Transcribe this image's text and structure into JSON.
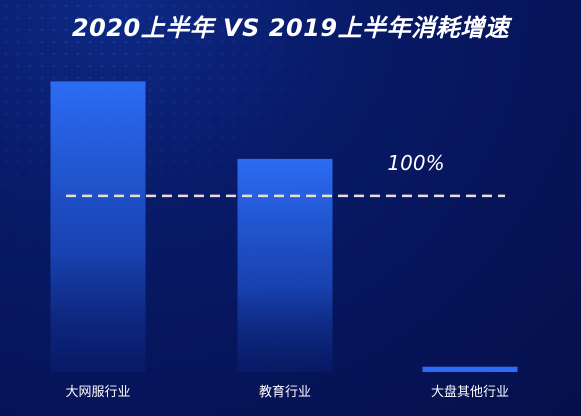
{
  "chart_data": {
    "type": "bar",
    "title": "2020上半年 VS 2019上半年消耗增速",
    "categories": [
      "大网服行业",
      "教育行业",
      "大盘其他行业"
    ],
    "values": [
      165,
      121,
      3
    ],
    "reference_line": {
      "label": "100%",
      "value": 100
    },
    "ylim": [
      0,
      180
    ],
    "colors": {
      "bar_top": "#2c6cf4",
      "bar_bottom": "#0b237a",
      "reference": "#e9dcd2"
    }
  }
}
